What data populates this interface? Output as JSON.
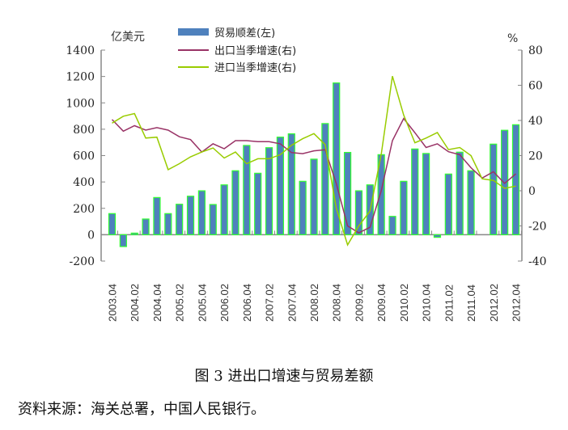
{
  "chart_data": {
    "type": "bar+line",
    "title": "图 3 进出口增速与贸易差额",
    "source": "资料来源：海关总署，中国人民银行。",
    "left_unit": "亿美元",
    "right_unit": "%",
    "ylim_left": [
      -200,
      1400
    ],
    "yticks_left": [
      -200,
      0,
      200,
      400,
      600,
      800,
      1000,
      1200,
      1400
    ],
    "ylim_right": [
      -40,
      80
    ],
    "yticks_right": [
      -40,
      -20,
      0,
      20,
      40,
      60,
      80
    ],
    "x_tick_labels": [
      "2003.04",
      "2004.02",
      "2004.04",
      "2005.02",
      "2005.04",
      "2006.02",
      "2006.04",
      "2007.02",
      "2007.04",
      "2008.02",
      "2008.04",
      "2009.02",
      "2009.04",
      "2010.02",
      "2010.04",
      "2011.02",
      "2011.04",
      "2012.02",
      "2012.04"
    ],
    "legend": [
      "贸易顺差(左)",
      "出口当季增速(右)",
      "进口当季增速(右)"
    ],
    "legend_position": "top",
    "series": [
      {
        "name": "贸易顺差(左)",
        "type": "bar",
        "axis": "left",
        "color": "#4f81bd",
        "values": [
          160,
          -90,
          12,
          119,
          282,
          160,
          231,
          292,
          333,
          229,
          378,
          485,
          677,
          466,
          660,
          740,
          765,
          405,
          573,
          843,
          1151,
          624,
          333,
          378,
          607,
          139,
          405,
          650,
          616,
          -20,
          460,
          626,
          485,
          0,
          687,
          792,
          834
        ]
      },
      {
        "name": "出口当季增速(右)",
        "type": "line",
        "axis": "right",
        "color": "#993366",
        "values": [
          40.5,
          33.9,
          37,
          34.5,
          35.9,
          34.5,
          30.7,
          29.1,
          22,
          26.7,
          23.9,
          28.5,
          28.5,
          27.9,
          27.9,
          26.7,
          21.7,
          21.1,
          22.7,
          23.3,
          4,
          -20,
          -23.9,
          -20.8,
          0,
          28.5,
          41.1,
          33,
          24.6,
          26.7,
          22.2,
          20.5,
          13.1,
          7.2,
          10.8,
          4.2,
          9.6
        ]
      },
      {
        "name": "进口当季增速(右)",
        "type": "line",
        "axis": "right",
        "color": "#99cc00",
        "values": [
          38.5,
          42.4,
          43.9,
          30,
          30.5,
          12,
          15.4,
          19.3,
          22,
          24.3,
          18.6,
          22,
          15.4,
          18.2,
          18.2,
          20.5,
          25.9,
          29.6,
          32.5,
          26.2,
          -10,
          -30.8,
          -20,
          -11.6,
          20.8,
          65.2,
          43.1,
          27.3,
          30,
          33.1,
          23.4,
          24.6,
          20,
          6.8,
          5.9,
          1.4,
          2.6
        ]
      }
    ]
  }
}
